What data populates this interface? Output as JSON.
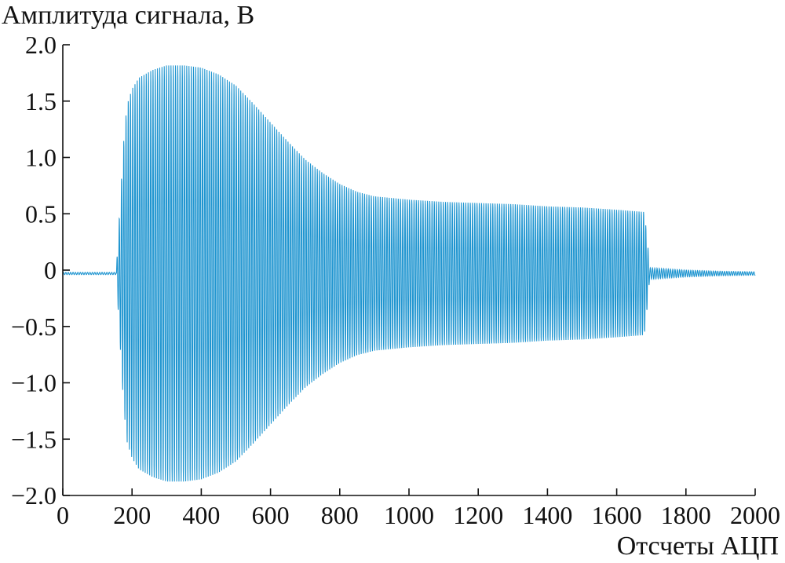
{
  "chart_data": {
    "type": "line",
    "ylabel": "Амплитуда сигнала, В",
    "xlabel": "Отсчеты АЦП",
    "xlim": [
      0,
      2000
    ],
    "ylim": [
      -2.0,
      2.0
    ],
    "x_ticks": [
      0,
      200,
      400,
      600,
      800,
      1000,
      1200,
      1400,
      1600,
      1800,
      2000
    ],
    "x_tick_labels": [
      "0",
      "200",
      "400",
      "600",
      "800",
      "1000",
      "1200",
      "1400",
      "1600",
      "1800",
      "2000"
    ],
    "y_ticks": [
      2.0,
      1.5,
      1.0,
      0.5,
      0,
      -0.5,
      -1.0,
      -1.5,
      -2.0
    ],
    "y_tick_labels": [
      "2.0",
      "1.5",
      "1.0",
      "0.5",
      "0",
      "−0.5",
      "−1.0",
      "−1.5",
      "−2.0"
    ],
    "grid": false,
    "series": [
      {
        "color": "#1f95d0",
        "baseline": -0.03,
        "signal_start": 155,
        "signal_end": 1695,
        "cycle_samples": 6.5,
        "envelope": {
          "x": [
            0,
            150,
            155,
            165,
            175,
            185,
            200,
            220,
            260,
            300,
            350,
            400,
            450,
            500,
            550,
            600,
            650,
            700,
            750,
            800,
            850,
            900,
            1000,
            1100,
            1200,
            1300,
            1400,
            1500,
            1600,
            1680,
            1690,
            1695,
            1700,
            1750,
            1800,
            1850,
            1900,
            2000
          ],
          "y": [
            0.01,
            0.01,
            0.05,
            0.6,
            1.15,
            1.5,
            1.65,
            1.75,
            1.82,
            1.86,
            1.86,
            1.84,
            1.78,
            1.68,
            1.52,
            1.35,
            1.18,
            1.02,
            0.9,
            0.8,
            0.73,
            0.69,
            0.66,
            0.64,
            0.63,
            0.62,
            0.6,
            0.59,
            0.57,
            0.55,
            0.25,
            0.05,
            0.05,
            0.04,
            0.03,
            0.025,
            0.02,
            0.015
          ]
        }
      }
    ]
  }
}
